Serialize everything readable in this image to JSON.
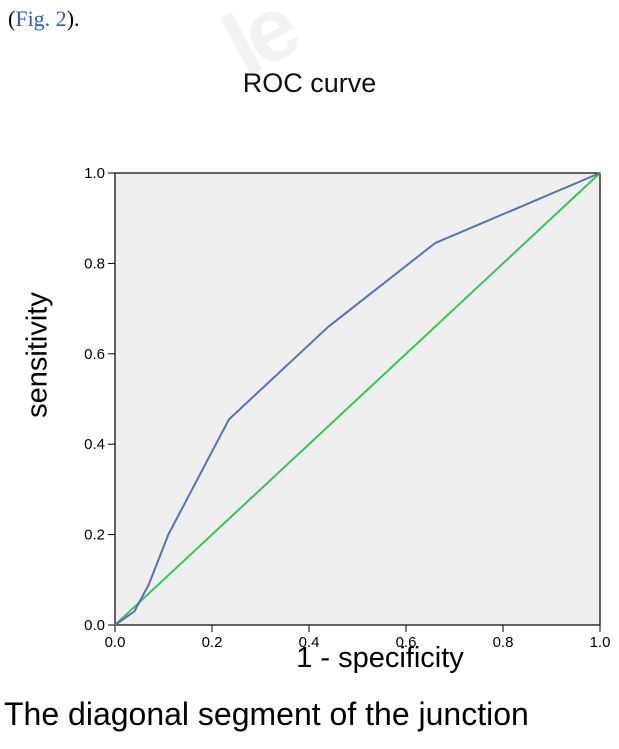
{
  "reference": {
    "open": "(",
    "link": "Fig. 2",
    "close": ")."
  },
  "caption": "The diagonal segment of the junction",
  "colors": {
    "plot_background": "#efefef",
    "roc_curve": "#5b6fb5",
    "reference_line": "#39c35a"
  },
  "chart_data": {
    "type": "line",
    "title": "ROC curve",
    "xlabel": "1 - specificity",
    "ylabel": "sensitivity",
    "xlim": [
      0,
      1
    ],
    "ylim": [
      0,
      1
    ],
    "x_ticks": [
      "0.0",
      "0.2",
      "0.4",
      "0.6",
      "0.8",
      "1.0"
    ],
    "y_ticks": [
      "0.0",
      "0.2",
      "0.4",
      "0.6",
      "0.8",
      "1.0"
    ],
    "grid": false,
    "series": [
      {
        "x": [
          0,
          0.04,
          0.07,
          0.11,
          0.235,
          0.44,
          0.66,
          1.0
        ],
        "y": [
          0,
          0.03,
          0.09,
          0.2,
          0.455,
          0.66,
          0.845,
          1.0
        ]
      },
      {
        "x": [
          0,
          1
        ],
        "y": [
          0,
          1
        ]
      }
    ]
  }
}
